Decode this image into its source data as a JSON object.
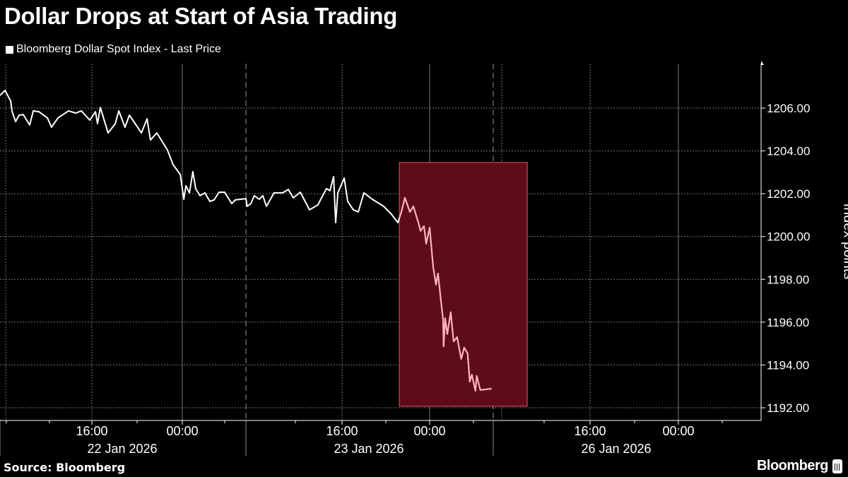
{
  "header": {
    "title": "Dollar Drops at Start of Asia Trading",
    "legend_label": "Bloomberg Dollar Spot Index - Last Price"
  },
  "footer": {
    "source": "Source: Bloomberg",
    "logo": "Bloomberg"
  },
  "chart_data": {
    "type": "line",
    "title": "Dollar Drops at Start of Asia Trading",
    "ylabel": "Index points",
    "xlabel": "",
    "ylim": [
      1191.6,
      1208.3
    ],
    "y_ticks": [
      "1192.00",
      "1194.00",
      "1196.00",
      "1198.00",
      "1200.00",
      "1202.00",
      "1204.00",
      "1206.00"
    ],
    "y_axis_side": "right",
    "grid": true,
    "legend_placement": "top-left",
    "x_tick_labels": [
      {
        "label": "16:00",
        "time": "2026-01-22T16:00"
      },
      {
        "label": "00:00",
        "time": "2026-01-23T00:00"
      },
      {
        "label": "16:00",
        "time": "2026-01-23T16:00"
      },
      {
        "label": "00:00",
        "time": "2026-01-24T00:00"
      },
      {
        "label": "16:00",
        "time": "2026-01-26T16:00"
      },
      {
        "label": "00:00",
        "time": "2026-01-27T00:00"
      }
    ],
    "date_labels": [
      "22 Jan 2026",
      "23 Jan 2026",
      "26 Jan 2026"
    ],
    "colors": {
      "line": "#ffffff",
      "highlight_line": "#ffb0bb",
      "highlight_fill": "#5e0c19",
      "highlight_border": "#c9485a",
      "background": "#000000"
    },
    "highlight": {
      "start": "2026-01-23T21:14",
      "end": "2026-01-26T10:18",
      "y_from": 1192.07,
      "y_to": 1203.46
    },
    "series": [
      {
        "name": "Bloomberg Dollar Spot Index - Last Price",
        "points": [
          [
            "2026-01-22T07:52",
            1206.59
          ],
          [
            "2026-01-22T08:19",
            1206.83
          ],
          [
            "2026-01-22T08:49",
            1206.33
          ],
          [
            "2026-01-22T08:56",
            1205.87
          ],
          [
            "2026-01-22T09:15",
            1205.37
          ],
          [
            "2026-01-22T09:34",
            1205.67
          ],
          [
            "2026-01-22T09:56",
            1205.7
          ],
          [
            "2026-01-22T10:30",
            1205.21
          ],
          [
            "2026-01-22T10:49",
            1205.87
          ],
          [
            "2026-01-22T11:19",
            1205.83
          ],
          [
            "2026-01-22T12:04",
            1205.54
          ],
          [
            "2026-01-22T12:26",
            1205.11
          ],
          [
            "2026-01-22T13:00",
            1205.54
          ],
          [
            "2026-01-22T13:56",
            1205.87
          ],
          [
            "2026-01-22T14:34",
            1205.77
          ],
          [
            "2026-01-22T15:04",
            1205.87
          ],
          [
            "2026-01-22T15:49",
            1205.44
          ],
          [
            "2026-01-22T16:19",
            1205.83
          ],
          [
            "2026-01-22T16:30",
            1205.27
          ],
          [
            "2026-01-22T16:45",
            1206.03
          ],
          [
            "2026-01-22T17:26",
            1204.84
          ],
          [
            "2026-01-22T18:04",
            1205.27
          ],
          [
            "2026-01-22T18:23",
            1205.87
          ],
          [
            "2026-01-22T18:56",
            1205.11
          ],
          [
            "2026-01-22T19:19",
            1205.67
          ],
          [
            "2026-01-22T19:45",
            1205.34
          ],
          [
            "2026-01-22T20:23",
            1204.84
          ],
          [
            "2026-01-22T20:53",
            1205.5
          ],
          [
            "2026-01-22T21:11",
            1204.51
          ],
          [
            "2026-01-22T21:45",
            1204.84
          ],
          [
            "2026-01-22T22:41",
            1204.05
          ],
          [
            "2026-01-22T23:11",
            1203.36
          ],
          [
            "2026-01-22T23:49",
            1202.9
          ],
          [
            "2026-01-23T00:08",
            1201.74
          ],
          [
            "2026-01-23T00:19",
            1202.37
          ],
          [
            "2026-01-23T00:38",
            1202.04
          ],
          [
            "2026-01-23T00:56",
            1203.03
          ],
          [
            "2026-01-23T01:11",
            1202.24
          ],
          [
            "2026-01-23T01:34",
            1201.91
          ],
          [
            "2026-01-23T02:00",
            1202.04
          ],
          [
            "2026-01-23T02:26",
            1201.64
          ],
          [
            "2026-01-23T02:49",
            1201.71
          ],
          [
            "2026-01-23T03:15",
            1202.07
          ],
          [
            "2026-01-23T03:45",
            1202.07
          ],
          [
            "2026-01-23T04:23",
            1201.54
          ],
          [
            "2026-01-23T04:41",
            1201.71
          ],
          [
            "2026-01-23T05:38",
            1201.77
          ],
          [
            "2026-01-23T07:21",
            1201.41
          ],
          [
            "2026-01-23T07:41",
            1201.54
          ],
          [
            "2026-01-23T08:00",
            1201.91
          ],
          [
            "2026-01-23T08:27",
            1201.74
          ],
          [
            "2026-01-23T08:47",
            1201.91
          ],
          [
            "2026-01-23T09:06",
            1201.41
          ],
          [
            "2026-01-23T09:48",
            1202.04
          ],
          [
            "2026-01-23T10:35",
            1202.04
          ],
          [
            "2026-01-23T11:06",
            1202.2
          ],
          [
            "2026-01-23T11:33",
            1201.81
          ],
          [
            "2026-01-23T12:12",
            1202.07
          ],
          [
            "2026-01-23T13:02",
            1201.25
          ],
          [
            "2026-01-23T13:48",
            1201.48
          ],
          [
            "2026-01-23T14:08",
            1201.81
          ],
          [
            "2026-01-23T14:35",
            1202.24
          ],
          [
            "2026-01-23T14:54",
            1202.14
          ],
          [
            "2026-01-23T15:14",
            1202.8
          ],
          [
            "2026-01-23T15:25",
            1200.65
          ],
          [
            "2026-01-23T15:37",
            1202.04
          ],
          [
            "2026-01-23T16:12",
            1202.73
          ],
          [
            "2026-01-23T16:31",
            1201.64
          ],
          [
            "2026-01-23T17:02",
            1201.25
          ],
          [
            "2026-01-23T17:29",
            1201.15
          ],
          [
            "2026-01-23T18:00",
            1202.04
          ],
          [
            "2026-01-23T18:46",
            1201.74
          ],
          [
            "2026-01-23T19:48",
            1201.41
          ],
          [
            "2026-01-23T20:27",
            1201.08
          ],
          [
            "2026-01-23T21:06",
            1200.65
          ],
          [
            "2026-01-23T21:25",
            1201.15
          ],
          [
            "2026-01-23T21:44",
            1201.81
          ],
          [
            "2026-01-23T22:12",
            1201.15
          ],
          [
            "2026-01-23T22:31",
            1201.41
          ],
          [
            "2026-01-23T22:58",
            1200.65
          ],
          [
            "2026-01-23T23:10",
            1200.26
          ],
          [
            "2026-01-23T23:29",
            1200.49
          ],
          [
            "2026-01-23T23:41",
            1199.66
          ],
          [
            "2026-01-24T00:00",
            1200.42
          ],
          [
            "2026-01-24T00:19",
            1198.6
          ],
          [
            "2026-01-24T00:35",
            1197.75
          ],
          [
            "2026-01-24T00:46",
            1198.27
          ],
          [
            "2026-01-24T01:14",
            1196.1
          ],
          [
            "2026-01-24T01:17",
            1194.87
          ],
          [
            "2026-01-24T01:25",
            1196.19
          ],
          [
            "2026-01-24T01:37",
            1195.44
          ],
          [
            "2026-01-24T01:56",
            1196.46
          ],
          [
            "2026-01-24T02:12",
            1195.1
          ],
          [
            "2026-01-24T02:31",
            1195.3
          ],
          [
            "2026-01-24T02:54",
            1194.28
          ],
          [
            "2026-01-24T03:10",
            1194.81
          ],
          [
            "2026-01-24T03:29",
            1194.54
          ],
          [
            "2026-01-24T03:41",
            1193.22
          ],
          [
            "2026-01-24T03:52",
            1193.55
          ],
          [
            "2026-01-24T04:12",
            1192.79
          ],
          [
            "2026-01-24T04:19",
            1193.49
          ],
          [
            "2026-01-24T04:39",
            1192.83
          ],
          [
            "2026-01-24T05:41",
            1192.89
          ]
        ]
      }
    ]
  }
}
